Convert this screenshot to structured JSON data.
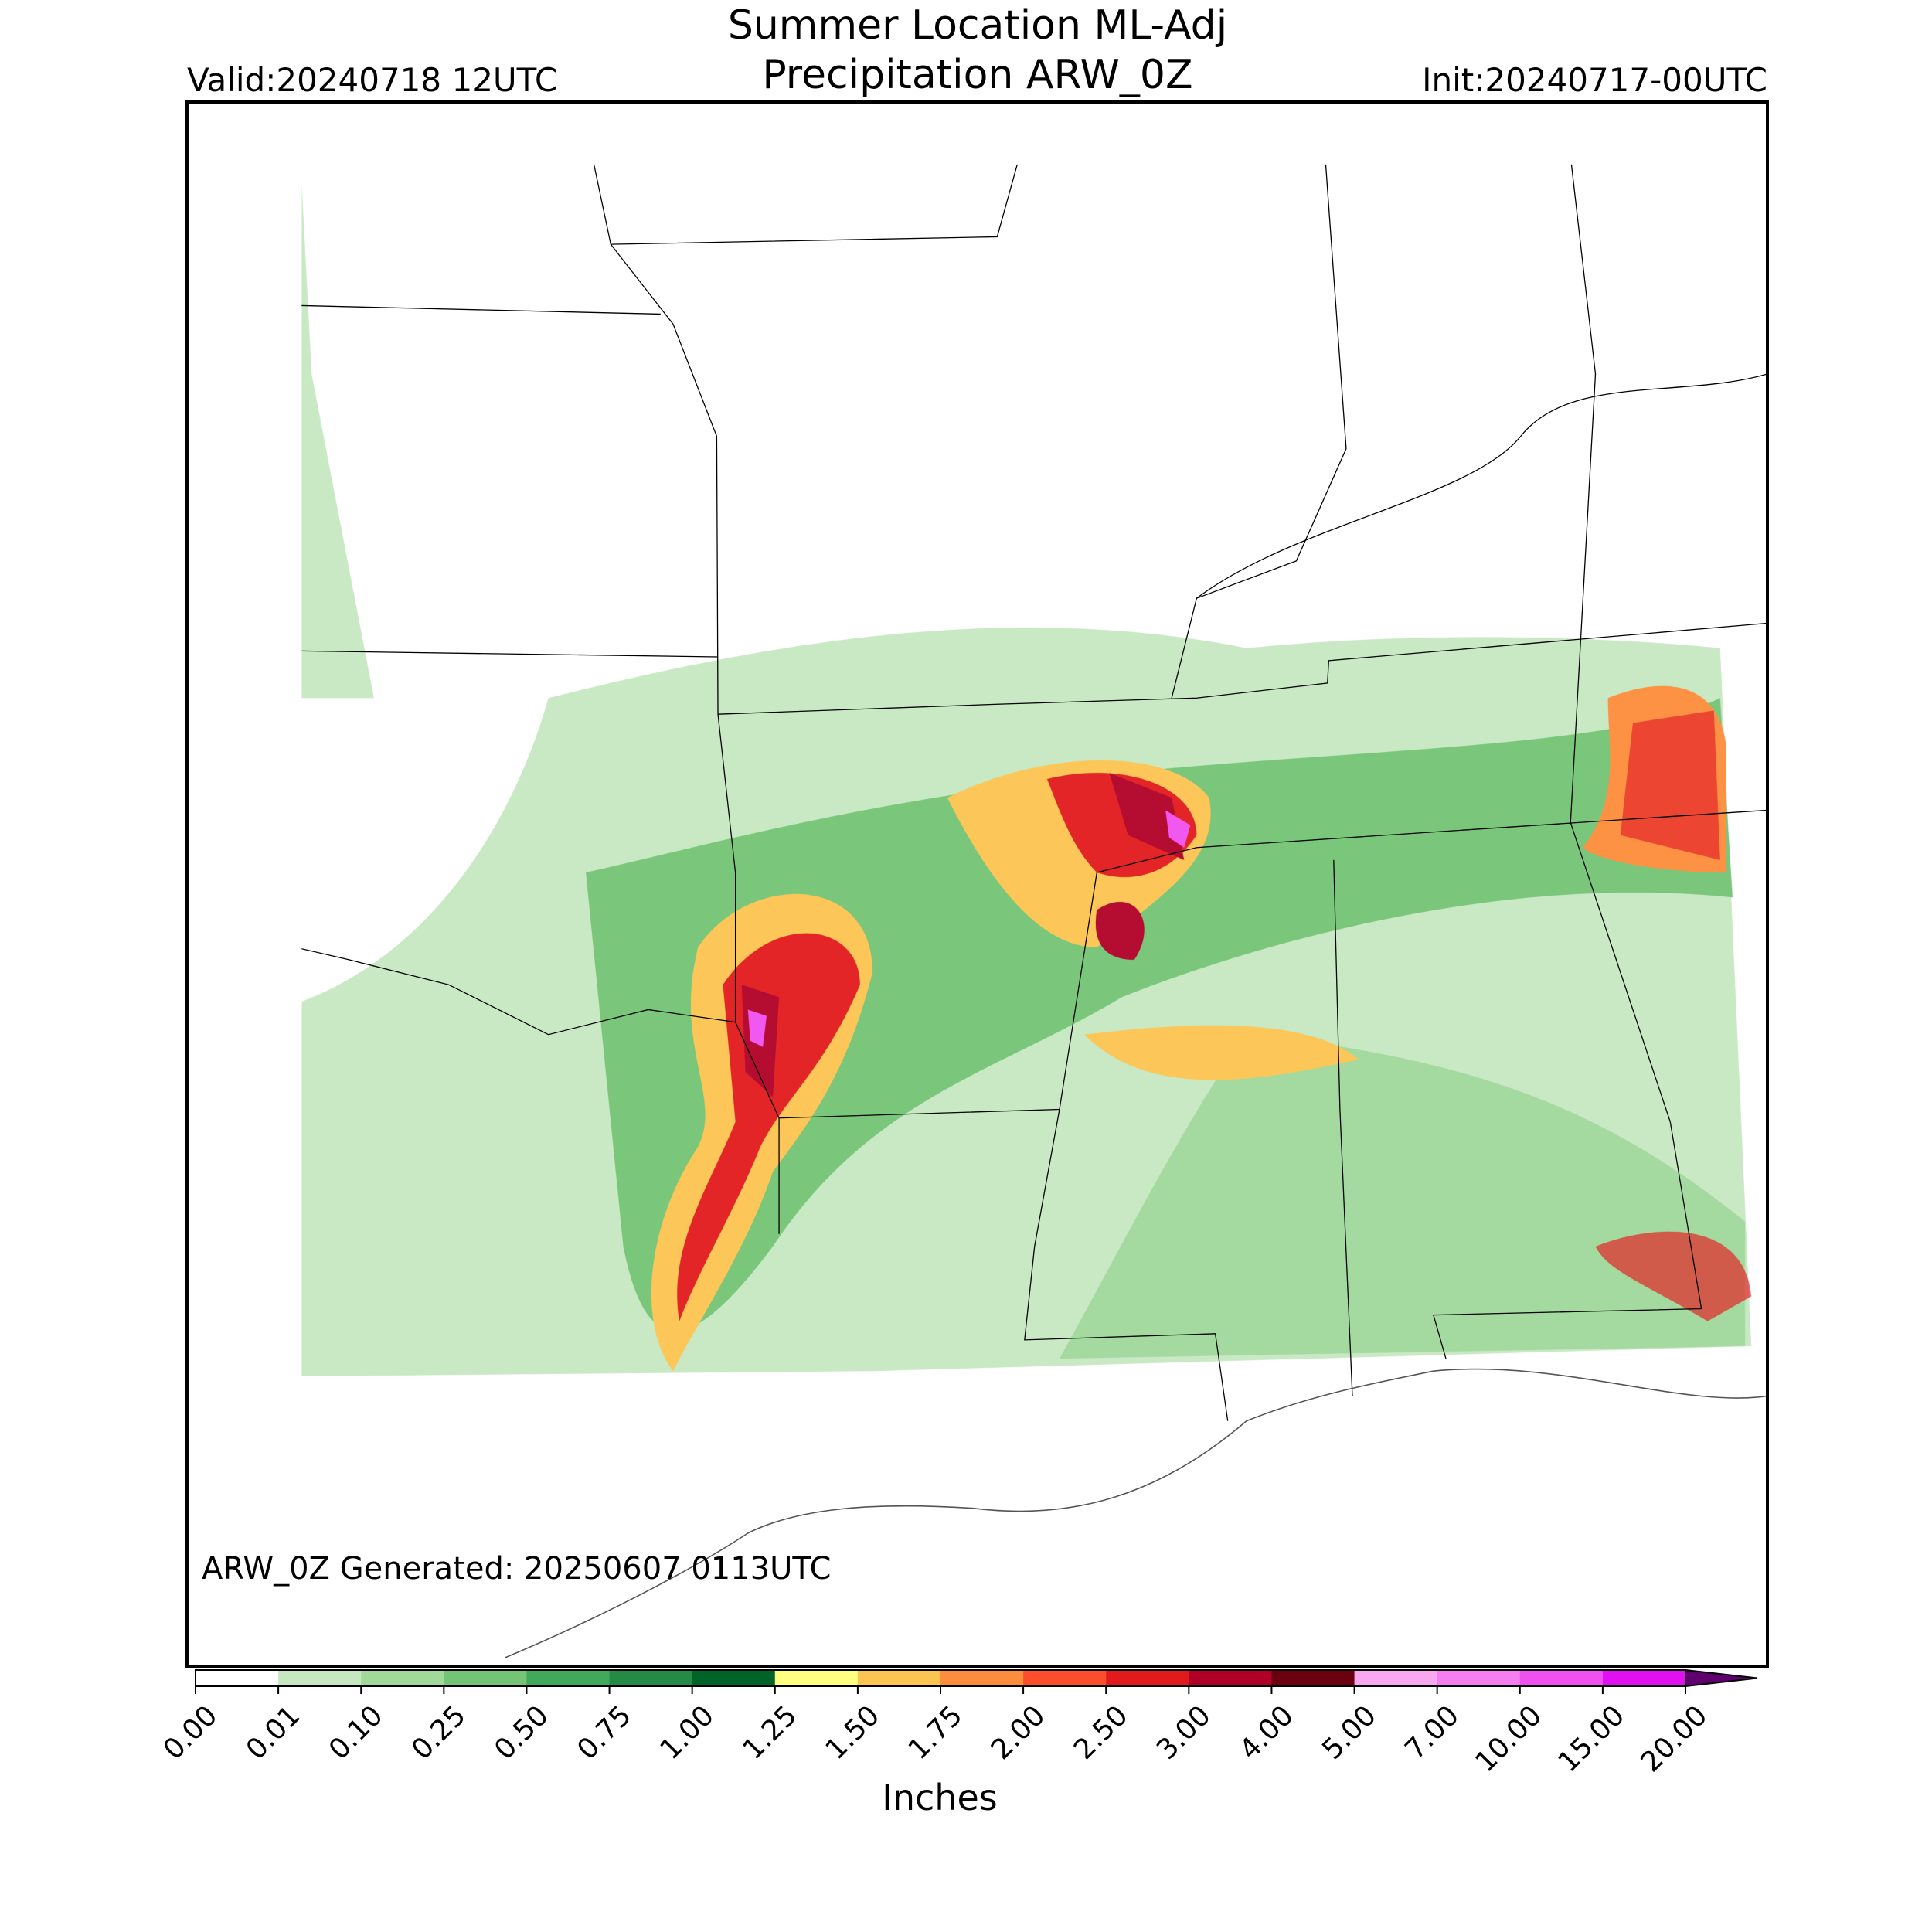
{
  "header": {
    "title_line1": "Summer Location ML-Adj",
    "title_line2": "Precipitation ARW_0Z",
    "valid": "Valid:20240718 12UTC",
    "init": "Init:20240717-00UTC"
  },
  "map": {
    "annotation": "ARW_0Z Generated: 20250607 0113UTC"
  },
  "colorbar": {
    "label": "Inches",
    "ticks": [
      {
        "value": 0,
        "label": "0.00"
      },
      {
        "value": 0.01,
        "label": "0.01"
      },
      {
        "value": 0.1,
        "label": "0.10"
      },
      {
        "value": 0.25,
        "label": "0.25"
      },
      {
        "value": 0.5,
        "label": "0.50"
      },
      {
        "value": 0.75,
        "label": "0.75"
      },
      {
        "value": 1,
        "label": "1.00"
      },
      {
        "value": 1.25,
        "label": "1.25"
      },
      {
        "value": 1.5,
        "label": "1.50"
      },
      {
        "value": 1.75,
        "label": "1.75"
      },
      {
        "value": 2,
        "label": "2.00"
      },
      {
        "value": 2.5,
        "label": "2.50"
      },
      {
        "value": 3,
        "label": "3.00"
      },
      {
        "value": 4,
        "label": "4.00"
      },
      {
        "value": 5,
        "label": "5.00"
      },
      {
        "value": 7,
        "label": "7.00"
      },
      {
        "value": 10,
        "label": "10.00"
      },
      {
        "value": 15,
        "label": "15.00"
      },
      {
        "value": 20,
        "label": "20.00"
      }
    ],
    "colors": [
      "#ffffff",
      "#c6e8c0",
      "#a0d99a",
      "#73c475",
      "#40aa5c",
      "#238b45",
      "#006428",
      "#ffff80",
      "#fcc450",
      "#fd8d3c",
      "#fc4e2a",
      "#e31a1c",
      "#b10026",
      "#6a0010",
      "#f7a8f0",
      "#f57ef0",
      "#f050f0",
      "#e010f0",
      "#9a00c8"
    ],
    "extend_color": "#600070"
  }
}
